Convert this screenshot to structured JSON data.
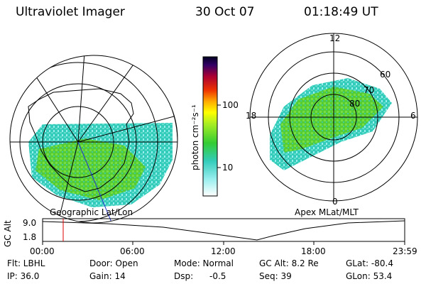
{
  "header": {
    "title": "Ultraviolet Imager",
    "date": "30 Oct 07",
    "time": "01:18:49 UT"
  },
  "left_panel": {
    "caption": "Geographic Lat/Lon"
  },
  "right_panel": {
    "caption": "Apex MLat/MLT",
    "mlt_labels": [
      "12",
      "18",
      "6",
      "0"
    ],
    "lat_labels": [
      "60",
      "70",
      "80"
    ]
  },
  "colorbar": {
    "unit": "photon cm⁻²s⁻¹",
    "tick_labels": [
      "100",
      "10"
    ]
  },
  "timeline": {
    "ylabel": "GC Alt",
    "y_ticks": [
      "9.0",
      "1.8"
    ],
    "x_ticks": [
      "00:00",
      "06:00",
      "12:00",
      "18:00",
      "23:59"
    ]
  },
  "info": {
    "row1": [
      "Flt: LBHL",
      "Door: Open",
      "Mode: Normal",
      "GC Alt: 8.2 Re",
      "GLat: -80.4"
    ],
    "row2": [
      "IP: 36.0",
      "Gain: 14",
      "Dsp:",
      "-0.5",
      "Seq: 39",
      "GLon: 53.4"
    ]
  },
  "colors": {
    "aurora_green": "#66dd33",
    "aurora_cyan": "#33ddcc",
    "marker": "#dd0000"
  }
}
